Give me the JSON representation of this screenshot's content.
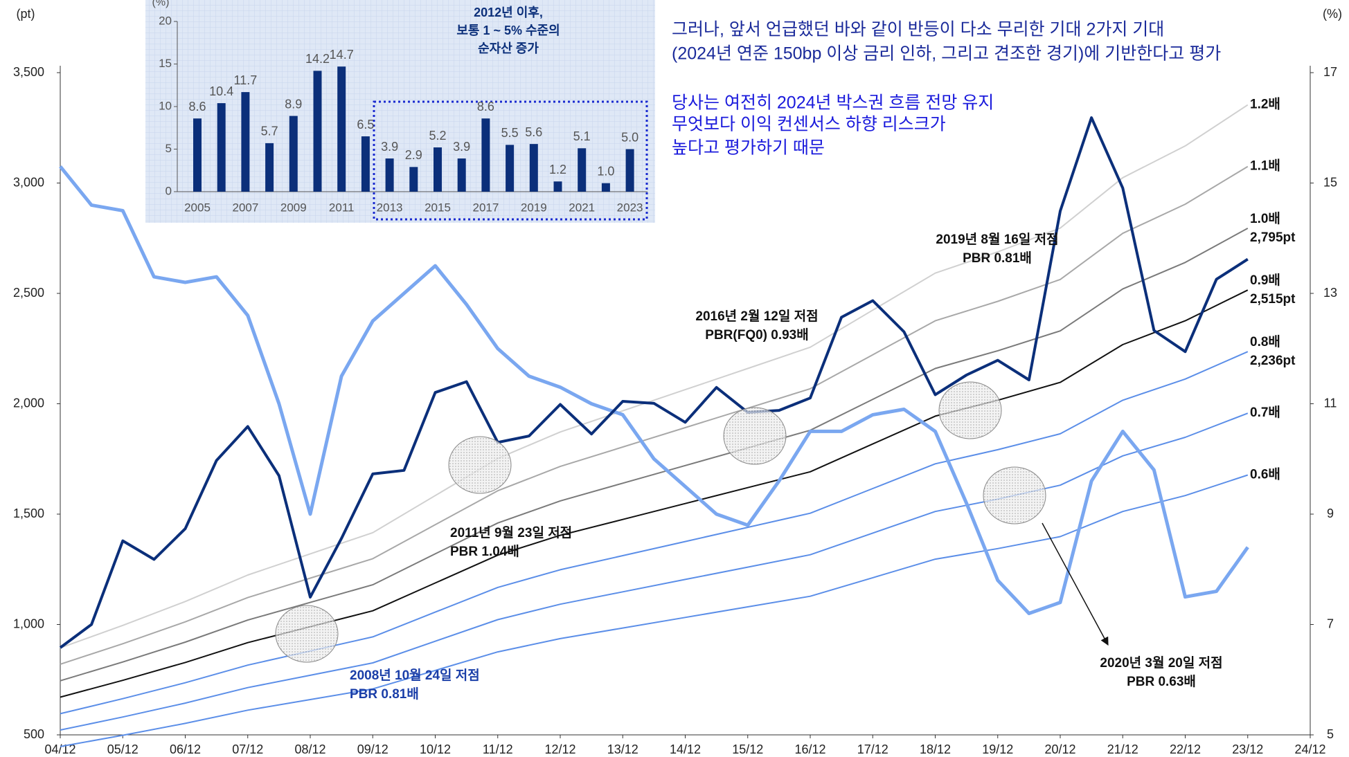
{
  "chart_data": [
    {
      "type": "line",
      "y_label": "(pt)",
      "y2_label": "(%)",
      "xticks": [
        "04/12",
        "05/12",
        "06/12",
        "07/12",
        "08/12",
        "09/12",
        "10/12",
        "11/12",
        "12/12",
        "13/12",
        "14/12",
        "15/12",
        "16/12",
        "17/12",
        "18/12",
        "19/12",
        "20/12",
        "21/12",
        "22/12",
        "23/12",
        "24/12"
      ],
      "ylim": [
        500,
        3500
      ],
      "yticks": [
        {
          "value": 500,
          "label": "500"
        },
        {
          "value": 1000,
          "label": "1,000"
        },
        {
          "value": 1500,
          "label": "1,500"
        },
        {
          "value": 2000,
          "label": "2,000"
        },
        {
          "value": 2500,
          "label": "2,500"
        },
        {
          "value": 3000,
          "label": "3,000"
        },
        {
          "value": 3500,
          "label": "3,500"
        }
      ],
      "y2lim": [
        5,
        17
      ],
      "y2ticks": [
        5,
        7,
        9,
        11,
        13,
        15,
        17
      ],
      "x": [
        "04/12",
        "05/06",
        "05/12",
        "06/06",
        "06/12",
        "07/06",
        "07/12",
        "08/06",
        "08/12",
        "09/06",
        "09/12",
        "10/06",
        "10/12",
        "11/06",
        "11/12",
        "12/06",
        "12/12",
        "13/06",
        "13/12",
        "14/06",
        "14/12",
        "15/06",
        "15/12",
        "16/06",
        "16/12",
        "17/06",
        "17/12",
        "18/06",
        "18/12",
        "19/06",
        "19/12",
        "20/06",
        "20/12",
        "21/06",
        "21/12",
        "22/06",
        "22/12",
        "23/06",
        "23/12"
      ],
      "series": [
        {
          "color": "#7aa7f0",
          "axis": "y2",
          "values": [
            15.3,
            14.6,
            14.5,
            13.3,
            13.2,
            13.3,
            12.6,
            11.0,
            9.0,
            11.5,
            12.5,
            13.0,
            13.5,
            12.8,
            12.0,
            11.5,
            11.3,
            11.0,
            10.8,
            10.0,
            9.5,
            9.0,
            8.8,
            9.6,
            10.5,
            10.5,
            10.8,
            10.9,
            10.5,
            9.2,
            7.8,
            7.2,
            7.4,
            9.6,
            10.5,
            9.8,
            7.5,
            7.6,
            8.4
          ]
        },
        {
          "color": "#0b2f7a",
          "values": [
            895,
            1000,
            1379,
            1295,
            1434,
            1743,
            1897,
            1674,
            1124,
            1390,
            1682,
            1698,
            2051,
            2100,
            1825,
            1854,
            1997,
            1863,
            2011,
            2002,
            1916,
            2074,
            1961,
            1970,
            2026,
            2392,
            2467,
            2326,
            2041,
            2130,
            2197,
            2108,
            2873,
            3296,
            2977,
            2332,
            2236,
            2564,
            2655
          ]
        }
      ],
      "band_x": [
        "04/12",
        "05/12",
        "06/12",
        "07/12",
        "08/12",
        "09/12",
        "10/12",
        "11/12",
        "12/12",
        "13/12",
        "14/12",
        "15/12",
        "16/12",
        "17/12",
        "18/12",
        "19/12",
        "20/12",
        "21/12",
        "22/12",
        "23/12"
      ],
      "bands": [
        {
          "name": "1.2배",
          "color": "#d0d0d0",
          "values": [
            894,
            996,
            1104,
            1224,
            1320,
            1416,
            1584,
            1752,
            1872,
            1968,
            2064,
            2160,
            2256,
            2424,
            2592,
            2688,
            2796,
            3024,
            3168,
            3354
          ]
        },
        {
          "name": "1.1배",
          "color": "#a8a8a8",
          "values": [
            820,
            913,
            1012,
            1122,
            1210,
            1298,
            1452,
            1606,
            1716,
            1804,
            1892,
            1980,
            2068,
            2222,
            2376,
            2464,
            2563,
            2772,
            2904,
            3075
          ]
        },
        {
          "name": "1.0배",
          "end_label": "2,795pt",
          "color": "#7a7a7a",
          "values": [
            745,
            830,
            920,
            1020,
            1100,
            1180,
            1320,
            1460,
            1560,
            1640,
            1720,
            1800,
            1880,
            2020,
            2160,
            2240,
            2330,
            2520,
            2640,
            2795
          ]
        },
        {
          "name": "0.9배",
          "end_label": "2,515pt",
          "color": "#111111",
          "values": [
            671,
            747,
            828,
            918,
            990,
            1062,
            1188,
            1314,
            1404,
            1476,
            1548,
            1620,
            1692,
            1818,
            1944,
            2016,
            2097,
            2268,
            2376,
            2515
          ]
        },
        {
          "name": "0.8배",
          "end_label": "2,236pt",
          "color": "#5b8ee8",
          "values": [
            596,
            664,
            736,
            816,
            880,
            944,
            1056,
            1168,
            1248,
            1312,
            1376,
            1440,
            1504,
            1616,
            1728,
            1792,
            1864,
            2016,
            2112,
            2236
          ]
        },
        {
          "name": "0.7배",
          "color": "#5b8ee8",
          "values": [
            522,
            581,
            644,
            714,
            770,
            826,
            924,
            1022,
            1092,
            1148,
            1204,
            1260,
            1316,
            1414,
            1512,
            1568,
            1631,
            1764,
            1848,
            1957
          ]
        },
        {
          "name": "0.6배",
          "color": "#5b8ee8",
          "values": [
            447,
            498,
            552,
            612,
            660,
            708,
            792,
            876,
            936,
            984,
            1032,
            1080,
            1128,
            1212,
            1296,
            1344,
            1398,
            1512,
            1584,
            1677
          ]
        }
      ],
      "notes": [
        "그러나, 앞서 언급했던 바와 같이 반등이 다소 무리한 기대 2가지 기대",
        "(2024년 연준 150bp 이상 금리 인하, 그리고 견조한 경기)에 기반한다고 평가",
        "당사는 여전히 2024년 박스권 흐름 전망 유지",
        "무엇보다 이익 컨센서스 하향 리스크가",
        "높다고 평가하기 때문"
      ],
      "annotations": [
        [
          "2019년 8월 16일 저점",
          "PBR 0.81배"
        ],
        [
          "2016년 2월 12일 저점",
          "PBR(FQ0) 0.93배"
        ],
        [
          "2011년 9월 23일 저점",
          "PBR 1.04배"
        ],
        [
          "2008년 10월 24일 저점",
          "PBR 0.81배"
        ],
        [
          "2020년 3월 20일 저점",
          "PBR 0.63배"
        ]
      ]
    },
    {
      "type": "bar",
      "y_label": "(%)",
      "categories": [
        "2005",
        null,
        "2007",
        null,
        "2009",
        null,
        "2011",
        null,
        "2013",
        null,
        "2015",
        null,
        "2017",
        null,
        "2019",
        null,
        "2021",
        null,
        "2023"
      ],
      "values": [
        8.6,
        10.4,
        11.7,
        5.7,
        8.9,
        14.2,
        14.7,
        6.5,
        3.9,
        2.9,
        5.2,
        3.9,
        8.6,
        5.5,
        5.6,
        1.2,
        5.1,
        1.0,
        5.0
      ],
      "value_labels": [
        "8.6",
        "10.4",
        "11.7",
        "5.7",
        "8.9",
        "14.2",
        "14.7",
        "6.5",
        "3.9",
        "2.9",
        "5.2",
        "3.9",
        "8.6",
        "5.5",
        "5.6",
        "1.2",
        "5.1",
        "1.0",
        "5.0"
      ],
      "color": "#0b2f7a",
      "ylim": [
        0,
        20
      ],
      "yticks": [
        0,
        5,
        10,
        15,
        20
      ],
      "annotation": [
        "2012년 이후,",
        "보통 1 ~ 5% 수준의",
        "순자산 증가"
      ]
    }
  ]
}
